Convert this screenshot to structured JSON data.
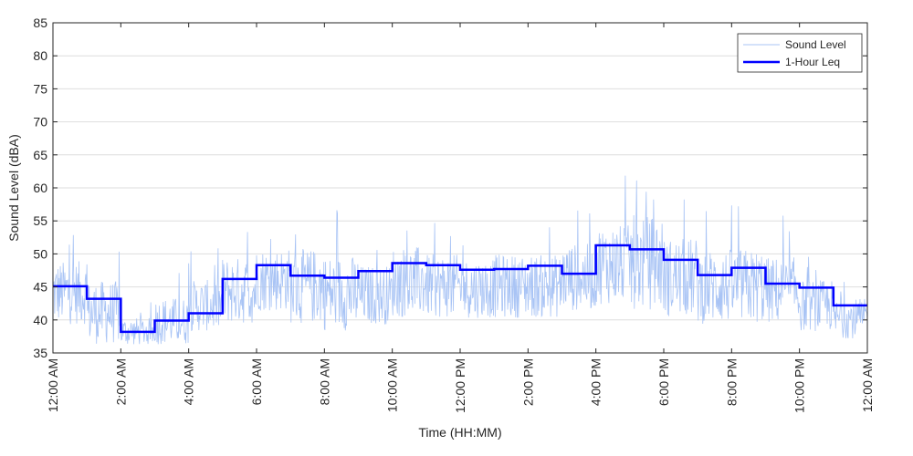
{
  "chart_data": {
    "type": "line",
    "xlabel": "Time (HH:MM)",
    "ylabel": "Sound Level (dBA)",
    "xlim": [
      0,
      24
    ],
    "ylim": [
      35,
      85
    ],
    "yticks": [
      35,
      40,
      45,
      50,
      55,
      60,
      65,
      70,
      75,
      80,
      85
    ],
    "xticks": [
      {
        "hour": 0,
        "label": "12:00 AM"
      },
      {
        "hour": 2,
        "label": "2:00 AM"
      },
      {
        "hour": 4,
        "label": "4:00 AM"
      },
      {
        "hour": 6,
        "label": "6:00 AM"
      },
      {
        "hour": 8,
        "label": "8:00 AM"
      },
      {
        "hour": 10,
        "label": "10:00 AM"
      },
      {
        "hour": 12,
        "label": "12:00 PM"
      },
      {
        "hour": 14,
        "label": "2:00 PM"
      },
      {
        "hour": 16,
        "label": "4:00 PM"
      },
      {
        "hour": 18,
        "label": "6:00 PM"
      },
      {
        "hour": 20,
        "label": "8:00 PM"
      },
      {
        "hour": 22,
        "label": "10:00 PM"
      },
      {
        "hour": 24,
        "label": "12:00 AM"
      }
    ],
    "grid": "horizontal",
    "legend_position": "top-right",
    "series": [
      {
        "name": "Sound Level",
        "color": "#a9c4f5",
        "description_hourly_range": [
          {
            "hour": 0,
            "low": 39,
            "high": 55
          },
          {
            "hour": 1,
            "low": 36,
            "high": 52
          },
          {
            "hour": 2,
            "low": 36,
            "high": 43
          },
          {
            "hour": 3,
            "low": 36,
            "high": 48
          },
          {
            "hour": 4,
            "low": 38,
            "high": 51
          },
          {
            "hour": 5,
            "low": 39,
            "high": 56
          },
          {
            "hour": 6,
            "low": 41,
            "high": 57
          },
          {
            "hour": 7,
            "low": 39,
            "high": 58
          },
          {
            "hour": 8,
            "low": 38,
            "high": 57
          },
          {
            "hour": 9,
            "low": 39,
            "high": 54
          },
          {
            "hour": 10,
            "low": 40,
            "high": 58
          },
          {
            "hour": 11,
            "low": 40,
            "high": 56
          },
          {
            "hour": 12,
            "low": 40,
            "high": 55
          },
          {
            "hour": 13,
            "low": 40,
            "high": 56
          },
          {
            "hour": 14,
            "low": 40,
            "high": 56
          },
          {
            "hour": 15,
            "low": 41,
            "high": 58
          },
          {
            "hour": 16,
            "low": 42,
            "high": 62
          },
          {
            "hour": 17,
            "low": 41,
            "high": 65
          },
          {
            "hour": 18,
            "low": 40,
            "high": 60
          },
          {
            "hour": 19,
            "low": 39,
            "high": 58
          },
          {
            "hour": 20,
            "low": 39,
            "high": 58
          },
          {
            "hour": 21,
            "low": 39,
            "high": 56
          },
          {
            "hour": 22,
            "low": 38,
            "high": 51
          },
          {
            "hour": 23,
            "low": 37,
            "high": 47
          }
        ]
      },
      {
        "name": "1-Hour Leq",
        "color": "#0000ff",
        "hours": [
          0,
          1,
          2,
          3,
          4,
          5,
          6,
          7,
          8,
          9,
          10,
          11,
          12,
          13,
          14,
          15,
          16,
          17,
          18,
          19,
          20,
          21,
          22,
          23
        ],
        "values": [
          45.1,
          43.2,
          38.2,
          39.9,
          41.0,
          46.2,
          48.3,
          46.7,
          46.4,
          47.4,
          48.6,
          48.3,
          47.6,
          47.7,
          48.2,
          47.0,
          51.3,
          50.7,
          49.1,
          46.8,
          47.9,
          45.5,
          44.9,
          42.2
        ]
      }
    ]
  }
}
